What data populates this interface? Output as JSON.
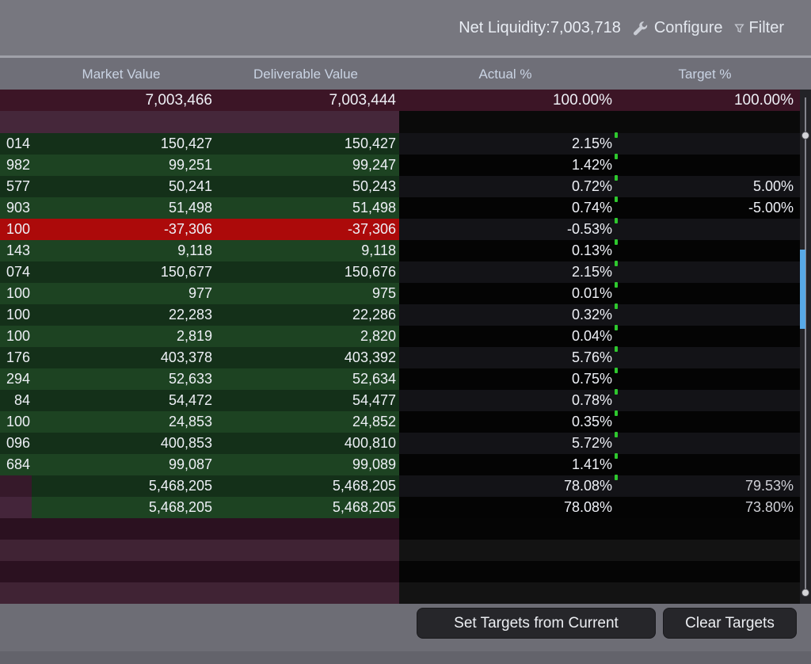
{
  "top_bar": {
    "net_liquidity_label": "Net Liquidity:",
    "net_liquidity_value": "7,003,718",
    "configure_label": "Configure",
    "filter_label": "Filter"
  },
  "table": {
    "columns": [
      "Market Value",
      "Deliverable Value",
      "Actual %",
      "Target %"
    ],
    "total_row": {
      "market_value": "7,003,466",
      "deliverable_value": "7,003,444",
      "actual_pct": "100.00%",
      "target_pct": "100.00%"
    },
    "rows": [
      {
        "frag": "014",
        "mv": "150,427",
        "dv": "150,427",
        "actual": "2.15%",
        "target": "",
        "negative": false,
        "tick": true
      },
      {
        "frag": "982",
        "mv": "99,251",
        "dv": "99,247",
        "actual": "1.42%",
        "target": "",
        "negative": false,
        "tick": true
      },
      {
        "frag": "577",
        "mv": "50,241",
        "dv": "50,243",
        "actual": "0.72%",
        "target": "5.00%",
        "negative": false,
        "tick": true
      },
      {
        "frag": "903",
        "mv": "51,498",
        "dv": "51,498",
        "actual": "0.74%",
        "target": "-5.00%",
        "negative": false,
        "tick": true
      },
      {
        "frag": "100",
        "mv": "-37,306",
        "dv": "-37,306",
        "actual": "-0.53%",
        "target": "",
        "negative": true,
        "tick": true
      },
      {
        "frag": "143",
        "mv": "9,118",
        "dv": "9,118",
        "actual": "0.13%",
        "target": "",
        "negative": false,
        "tick": true
      },
      {
        "frag": "074",
        "mv": "150,677",
        "dv": "150,676",
        "actual": "2.15%",
        "target": "",
        "negative": false,
        "tick": true
      },
      {
        "frag": "100",
        "mv": "977",
        "dv": "975",
        "actual": "0.01%",
        "target": "",
        "negative": false,
        "tick": true
      },
      {
        "frag": "100",
        "mv": "22,283",
        "dv": "22,286",
        "actual": "0.32%",
        "target": "",
        "negative": false,
        "tick": true
      },
      {
        "frag": "100",
        "mv": "2,819",
        "dv": "2,820",
        "actual": "0.04%",
        "target": "",
        "negative": false,
        "tick": true
      },
      {
        "frag": "176",
        "mv": "403,378",
        "dv": "403,392",
        "actual": "5.76%",
        "target": "",
        "negative": false,
        "tick": true
      },
      {
        "frag": "294",
        "mv": "52,633",
        "dv": "52,634",
        "actual": "0.75%",
        "target": "",
        "negative": false,
        "tick": true
      },
      {
        "frag": "84",
        "mv": "54,472",
        "dv": "54,477",
        "actual": "0.78%",
        "target": "",
        "negative": false,
        "tick": true
      },
      {
        "frag": "100",
        "mv": "24,853",
        "dv": "24,852",
        "actual": "0.35%",
        "target": "",
        "negative": false,
        "tick": true
      },
      {
        "frag": "096",
        "mv": "400,853",
        "dv": "400,810",
        "actual": "5.72%",
        "target": "",
        "negative": false,
        "tick": true
      },
      {
        "frag": "684",
        "mv": "99,087",
        "dv": "99,089",
        "actual": "1.41%",
        "target": "",
        "negative": false,
        "tick": true
      }
    ],
    "summary_rows": [
      {
        "mv": "5,468,205",
        "dv": "5,468,205",
        "actual": "78.08%",
        "target": "79.53%",
        "tick": true
      },
      {
        "mv": "5,468,205",
        "dv": "5,468,205",
        "actual": "78.08%",
        "target": "73.80%",
        "tick": false
      }
    ]
  },
  "footer": {
    "set_targets_label": "Set Targets from Current",
    "clear_targets_label": "Clear Targets"
  },
  "colors": {
    "annotation_blue": "#58aae8",
    "negative_red": "#ac0a0a",
    "green_dark": "#143019",
    "green_light": "#1d4322",
    "total_maroon": "#3c1526",
    "tick_green": "#2ec82e"
  }
}
